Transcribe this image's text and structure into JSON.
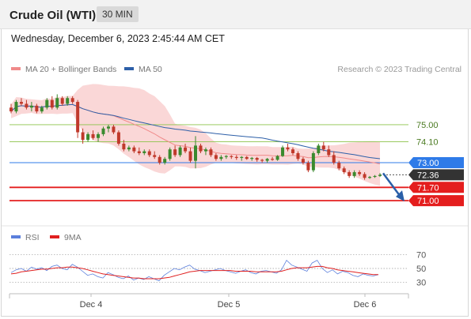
{
  "header": {
    "title": "Crude Oil (WTI)",
    "timeframe": "30 MIN"
  },
  "datetime": "Wednesday, December 6, 2023 2:45:44 AM CET",
  "copyright": "Research © 2023 Trading Central",
  "legend": {
    "ma20": {
      "label": "MA 20 + Bollinger Bands",
      "color": "#f08a8a"
    },
    "ma50": {
      "label": "MA 50",
      "color": "#2d5fa8"
    },
    "rsi": {
      "label": "RSI",
      "color": "#5b7fdc"
    },
    "ma9": {
      "label": "9MA",
      "color": "#e02020"
    }
  },
  "colors": {
    "bull": "#3a8a2e",
    "bear": "#c0392b",
    "band": "#f9d0d0",
    "support": "#e41e1e",
    "resistance": "#8bc34a",
    "pivot": "#2f7be8",
    "price_tag": "#333333",
    "arrow": "#2a5fa8"
  },
  "chart_data": [
    {
      "type": "candlestick",
      "ylim": [
        69.8,
        77.2
      ],
      "x_ticks": [
        "Dec 4",
        "Dec 5",
        "Dec 6"
      ],
      "price_levels": [
        {
          "value": 75.0,
          "label": "75.00",
          "kind": "resistance"
        },
        {
          "value": 74.1,
          "label": "74.10",
          "kind": "resistance"
        },
        {
          "value": 73.0,
          "label": "73.00",
          "kind": "pivot"
        },
        {
          "value": 72.36,
          "label": "72.36",
          "kind": "last"
        },
        {
          "value": 71.7,
          "label": "71.70",
          "kind": "support"
        },
        {
          "value": 71.0,
          "label": "71.00",
          "kind": "support"
        }
      ],
      "candles": [
        [
          75.9,
          76.1,
          75.6,
          75.7
        ],
        [
          75.7,
          76.3,
          75.6,
          76.2
        ],
        [
          76.2,
          76.4,
          76.0,
          76.1
        ],
        [
          76.1,
          76.3,
          75.8,
          75.9
        ],
        [
          75.9,
          76.2,
          75.7,
          76.0
        ],
        [
          76.0,
          76.1,
          75.6,
          75.7
        ],
        [
          75.7,
          76.0,
          75.6,
          75.9
        ],
        [
          75.9,
          76.4,
          75.8,
          76.3
        ],
        [
          76.3,
          76.5,
          75.8,
          75.9
        ],
        [
          75.9,
          76.6,
          75.8,
          76.4
        ],
        [
          76.4,
          76.5,
          76.0,
          76.1
        ],
        [
          76.1,
          76.5,
          76.0,
          76.4
        ],
        [
          76.4,
          76.5,
          76.1,
          76.2
        ],
        [
          76.2,
          76.3,
          74.3,
          74.6
        ],
        [
          74.6,
          74.8,
          74.0,
          74.2
        ],
        [
          74.2,
          74.6,
          74.1,
          74.5
        ],
        [
          74.5,
          74.7,
          74.2,
          74.3
        ],
        [
          74.3,
          74.6,
          74.1,
          74.5
        ],
        [
          74.5,
          74.9,
          74.4,
          74.8
        ],
        [
          74.8,
          75.0,
          74.6,
          74.9
        ],
        [
          74.9,
          75.0,
          74.5,
          74.6
        ],
        [
          74.6,
          74.7,
          73.9,
          74.0
        ],
        [
          74.0,
          74.2,
          73.6,
          73.7
        ],
        [
          73.7,
          73.9,
          73.6,
          73.8
        ],
        [
          73.8,
          73.9,
          73.5,
          73.6
        ],
        [
          73.6,
          73.8,
          73.4,
          73.5
        ],
        [
          73.5,
          73.7,
          73.4,
          73.6
        ],
        [
          73.6,
          73.7,
          73.3,
          73.4
        ],
        [
          73.4,
          73.6,
          73.2,
          73.3
        ],
        [
          73.3,
          73.4,
          72.9,
          73.0
        ],
        [
          73.0,
          73.3,
          72.9,
          73.2
        ],
        [
          73.2,
          73.8,
          73.1,
          73.7
        ],
        [
          73.7,
          73.9,
          73.3,
          73.4
        ],
        [
          73.4,
          73.9,
          73.3,
          73.8
        ],
        [
          73.8,
          74.0,
          73.5,
          73.6
        ],
        [
          73.6,
          73.8,
          73.0,
          73.1
        ],
        [
          73.1,
          74.4,
          72.7,
          73.9
        ],
        [
          73.9,
          74.0,
          73.5,
          73.6
        ],
        [
          73.6,
          73.8,
          73.4,
          73.7
        ],
        [
          73.7,
          73.8,
          73.3,
          73.4
        ],
        [
          73.4,
          73.5,
          73.1,
          73.2
        ],
        [
          73.2,
          73.4,
          73.1,
          73.3
        ],
        [
          73.3,
          73.4,
          73.2,
          73.35
        ],
        [
          73.35,
          73.4,
          73.2,
          73.3
        ],
        [
          73.3,
          73.4,
          73.15,
          73.25
        ],
        [
          73.25,
          73.35,
          73.1,
          73.3
        ],
        [
          73.3,
          73.35,
          73.15,
          73.2
        ],
        [
          73.2,
          73.3,
          73.1,
          73.25
        ],
        [
          73.25,
          73.3,
          73.05,
          73.15
        ],
        [
          73.15,
          73.2,
          73.0,
          73.1
        ],
        [
          73.1,
          73.25,
          73.0,
          73.2
        ],
        [
          73.2,
          73.3,
          73.1,
          73.15
        ],
        [
          73.15,
          73.4,
          73.1,
          73.35
        ],
        [
          73.35,
          73.9,
          73.3,
          73.8
        ],
        [
          73.8,
          74.0,
          73.6,
          73.7
        ],
        [
          73.7,
          73.8,
          73.4,
          73.5
        ],
        [
          73.5,
          73.6,
          73.1,
          73.2
        ],
        [
          73.2,
          73.3,
          72.9,
          73.0
        ],
        [
          73.0,
          73.1,
          72.5,
          72.6
        ],
        [
          72.6,
          73.6,
          72.5,
          73.5
        ],
        [
          73.5,
          74.0,
          73.4,
          73.9
        ],
        [
          73.9,
          74.1,
          73.6,
          73.7
        ],
        [
          73.7,
          73.9,
          73.3,
          73.4
        ],
        [
          73.4,
          73.6,
          72.9,
          73.0
        ],
        [
          73.0,
          73.1,
          72.6,
          72.7
        ],
        [
          72.7,
          72.8,
          72.4,
          72.5
        ],
        [
          72.5,
          72.6,
          72.2,
          72.3
        ],
        [
          72.3,
          72.6,
          72.2,
          72.5
        ],
        [
          72.5,
          72.6,
          72.3,
          72.4
        ],
        [
          72.4,
          72.5,
          72.1,
          72.2
        ],
        [
          72.2,
          72.3,
          72.15,
          72.25
        ],
        [
          72.25,
          72.35,
          72.2,
          72.3
        ],
        [
          72.3,
          72.45,
          72.25,
          72.36
        ]
      ]
    },
    {
      "type": "line",
      "name": "RSI",
      "ylim": [
        20,
        80
      ],
      "y_ticks": [
        70,
        50,
        30
      ],
      "rsi": [
        44,
        48,
        50,
        46,
        52,
        49,
        51,
        47,
        53,
        55,
        50,
        48,
        56,
        52,
        46,
        40,
        42,
        38,
        36,
        44,
        41,
        37,
        35,
        39,
        33,
        36,
        34,
        38,
        35,
        32,
        40,
        45,
        50,
        48,
        52,
        55,
        49,
        47,
        44,
        46,
        48,
        50,
        47,
        45,
        43,
        46,
        48,
        44,
        42,
        46,
        47,
        45,
        43,
        48,
        62,
        55,
        52,
        49,
        46,
        58,
        62,
        50,
        44,
        48,
        42,
        46,
        44,
        40,
        38,
        42,
        40,
        39,
        41
      ],
      "ma9": [
        42,
        43,
        45,
        46,
        47,
        48,
        49,
        49,
        50,
        51,
        51,
        52,
        52,
        51,
        50,
        48,
        46,
        44,
        42,
        41,
        40,
        39,
        38,
        37,
        36,
        36,
        35,
        35,
        35,
        35,
        36,
        37,
        39,
        41,
        43,
        45,
        46,
        47,
        47,
        47,
        47,
        47,
        47,
        47,
        46,
        46,
        46,
        46,
        45,
        45,
        45,
        45,
        45,
        46,
        48,
        50,
        51,
        51,
        51,
        52,
        53,
        53,
        51,
        50,
        48,
        47,
        46,
        45,
        44,
        43,
        42,
        41,
        41
      ]
    }
  ]
}
